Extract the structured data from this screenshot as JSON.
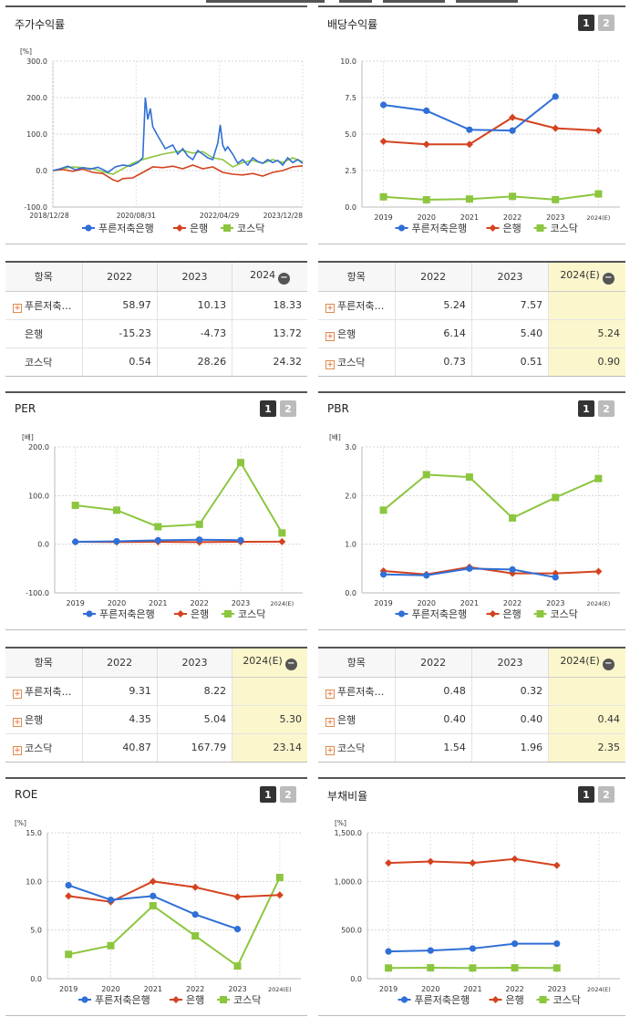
{
  "colors": {
    "bank": "#2f6fd6",
    "industry": "#d4431f",
    "kosdaq": "#8cc63f"
  },
  "legend": [
    "푸른저축은행",
    "은행",
    "코스닥"
  ],
  "btn1": "1",
  "btn2": "2",
  "panels": [
    {
      "key": "stock",
      "title": "주가수익률",
      "has_buttons": false
    },
    {
      "key": "div",
      "title": "배당수익률",
      "has_buttons": true
    },
    {
      "key": "per",
      "title": "PER",
      "has_buttons": true
    },
    {
      "key": "pbr",
      "title": "PBR",
      "has_buttons": true
    },
    {
      "key": "roe",
      "title": "ROE",
      "has_buttons": true
    },
    {
      "key": "debt",
      "title": "부채비율",
      "has_buttons": true
    }
  ],
  "chart_data": [
    {
      "id": "stock",
      "type": "line",
      "unit": "[%]",
      "yticks": [
        "300.0",
        "200.0",
        "100.0",
        "0.0",
        "-100.0"
      ],
      "ylim": [
        -100,
        300
      ],
      "xticks": [
        "2018/12/28",
        "2020/08/31",
        "2022/04/29",
        "2023/12/28"
      ],
      "series": [
        {
          "name": "푸른저축은행",
          "color": "#2f6fd6",
          "t": [
            0,
            3,
            6,
            9,
            12,
            15,
            18,
            20,
            22,
            25,
            28,
            31,
            34,
            36,
            37,
            38,
            39,
            40,
            42,
            45,
            48,
            50,
            52,
            54,
            56,
            58,
            60,
            62,
            64,
            66,
            67,
            68,
            69,
            70,
            72,
            74,
            76,
            78,
            80,
            82,
            84,
            86,
            88,
            90,
            92,
            94,
            96,
            98,
            100
          ],
          "v": [
            0,
            5,
            12,
            2,
            8,
            4,
            9,
            3,
            -5,
            10,
            15,
            12,
            22,
            35,
            200,
            140,
            170,
            120,
            95,
            60,
            70,
            45,
            60,
            40,
            30,
            55,
            45,
            35,
            30,
            75,
            125,
            70,
            55,
            65,
            45,
            20,
            30,
            15,
            35,
            25,
            20,
            30,
            22,
            28,
            15,
            35,
            22,
            30,
            20
          ]
        },
        {
          "name": "은행",
          "color": "#d4431f",
          "t": [
            0,
            4,
            8,
            12,
            16,
            20,
            24,
            26,
            28,
            32,
            36,
            40,
            44,
            48,
            52,
            56,
            60,
            64,
            68,
            72,
            76,
            80,
            84,
            88,
            92,
            96,
            100
          ],
          "v": [
            0,
            3,
            -2,
            4,
            -5,
            -8,
            -25,
            -30,
            -22,
            -20,
            -5,
            10,
            8,
            12,
            5,
            15,
            5,
            10,
            -5,
            -10,
            -12,
            -8,
            -15,
            -5,
            0,
            10,
            13
          ]
        },
        {
          "name": "코스닥",
          "color": "#8cc63f",
          "t": [
            0,
            4,
            8,
            12,
            16,
            20,
            24,
            28,
            32,
            36,
            40,
            44,
            48,
            52,
            56,
            60,
            64,
            68,
            72,
            76,
            80,
            84,
            88,
            92,
            96,
            100
          ],
          "v": [
            0,
            6,
            10,
            8,
            5,
            -3,
            -10,
            5,
            20,
            30,
            38,
            45,
            50,
            55,
            48,
            52,
            35,
            30,
            10,
            22,
            28,
            20,
            30,
            22,
            35,
            24
          ]
        }
      ]
    },
    {
      "id": "div",
      "type": "line",
      "unit": "",
      "yticks": [
        "10.0",
        "7.5",
        "5.0",
        "2.5",
        "0.0"
      ],
      "ylim": [
        0,
        10
      ],
      "categories": [
        "2019",
        "2020",
        "2021",
        "2022",
        "2023",
        "2024(E)"
      ],
      "series": [
        {
          "name": "푸른저축은행",
          "color": "#2f6fd6",
          "marker": "circle",
          "values": [
            7.0,
            6.6,
            5.3,
            5.24,
            7.57,
            null
          ]
        },
        {
          "name": "은행",
          "color": "#d4431f",
          "marker": "diamond",
          "values": [
            4.5,
            4.3,
            4.3,
            6.14,
            5.4,
            5.24
          ]
        },
        {
          "name": "코스닥",
          "color": "#8cc63f",
          "marker": "square",
          "values": [
            0.7,
            0.5,
            0.55,
            0.73,
            0.51,
            0.9
          ]
        }
      ]
    },
    {
      "id": "per",
      "type": "line",
      "unit": "[배]",
      "yticks": [
        "200.0",
        "100.0",
        "0.0",
        "-100.0"
      ],
      "ylim": [
        -100,
        200
      ],
      "categories": [
        "2019",
        "2020",
        "2021",
        "2022",
        "2023",
        "2024(E)"
      ],
      "series": [
        {
          "name": "푸른저축은행",
          "color": "#2f6fd6",
          "marker": "circle",
          "values": [
            5,
            6,
            8,
            9.31,
            8.22,
            null
          ]
        },
        {
          "name": "은행",
          "color": "#d4431f",
          "marker": "diamond",
          "values": [
            5,
            4.5,
            5,
            4.35,
            5.04,
            5.3
          ]
        },
        {
          "name": "코스닥",
          "color": "#8cc63f",
          "marker": "square",
          "values": [
            80,
            70,
            36,
            40.87,
            167.79,
            23.14
          ]
        }
      ]
    },
    {
      "id": "pbr",
      "type": "line",
      "unit": "[배]",
      "yticks": [
        "3.0",
        "2.0",
        "1.0",
        "0.0"
      ],
      "ylim": [
        0,
        3
      ],
      "categories": [
        "2019",
        "2020",
        "2021",
        "2022",
        "2023",
        "2024(E)"
      ],
      "series": [
        {
          "name": "푸른저축은행",
          "color": "#2f6fd6",
          "marker": "circle",
          "values": [
            0.38,
            0.36,
            0.5,
            0.48,
            0.32,
            null
          ]
        },
        {
          "name": "은행",
          "color": "#d4431f",
          "marker": "diamond",
          "values": [
            0.45,
            0.38,
            0.53,
            0.4,
            0.4,
            0.44
          ]
        },
        {
          "name": "코스닥",
          "color": "#8cc63f",
          "marker": "square",
          "values": [
            1.7,
            2.43,
            2.38,
            1.54,
            1.96,
            2.35
          ]
        }
      ]
    },
    {
      "id": "roe",
      "type": "line",
      "unit": "[%]",
      "yticks": [
        "15.0",
        "10.0",
        "5.0",
        "0.0"
      ],
      "ylim": [
        0,
        15
      ],
      "categories": [
        "2019",
        "2020",
        "2021",
        "2022",
        "2023",
        "2024(E)"
      ],
      "series": [
        {
          "name": "푸른저축은행",
          "color": "#2f6fd6",
          "marker": "circle",
          "values": [
            9.6,
            8.1,
            8.5,
            6.6,
            5.1,
            null
          ]
        },
        {
          "name": "은행",
          "color": "#d4431f",
          "marker": "diamond",
          "values": [
            8.5,
            7.9,
            10.0,
            9.4,
            8.4,
            8.6
          ]
        },
        {
          "name": "코스닥",
          "color": "#8cc63f",
          "marker": "square",
          "values": [
            2.5,
            3.4,
            7.5,
            4.4,
            1.3,
            10.4
          ]
        }
      ]
    },
    {
      "id": "debt",
      "type": "line",
      "unit": "[%]",
      "yticks": [
        "1,500.0",
        "1,000.0",
        "500.0",
        "0.0"
      ],
      "ylim": [
        0,
        1500
      ],
      "categories": [
        "2019",
        "2020",
        "2021",
        "2022",
        "2023",
        "2024(E)"
      ],
      "series": [
        {
          "name": "푸른저축은행",
          "color": "#2f6fd6",
          "marker": "circle",
          "values": [
            280,
            290,
            310,
            360,
            360,
            null
          ]
        },
        {
          "name": "은행",
          "color": "#d4431f",
          "marker": "diamond",
          "values": [
            1190,
            1205,
            1190,
            1230,
            1165,
            null
          ]
        },
        {
          "name": "코스닥",
          "color": "#8cc63f",
          "marker": "square",
          "values": [
            110,
            112,
            110,
            112,
            110,
            null
          ]
        }
      ]
    }
  ],
  "tables": [
    {
      "key": "stock_table",
      "header": {
        "item": "항목",
        "c1": "2022",
        "c2": "2023",
        "c3": "2024"
      },
      "rows": [
        {
          "plus": true,
          "label": "푸른저축…",
          "c1": "58.97",
          "c2": "10.13",
          "c3": "18.33",
          "hl": false
        },
        {
          "plus": false,
          "label": "은행",
          "c1": "-15.23",
          "c2": "-4.73",
          "c3": "13.72",
          "hl": false
        },
        {
          "plus": false,
          "label": "코스닥",
          "c1": "0.54",
          "c2": "28.26",
          "c3": "24.32",
          "hl": false
        }
      ]
    },
    {
      "key": "div_table",
      "header": {
        "item": "항목",
        "c1": "2022",
        "c2": "2023",
        "c3": "2024(E)"
      },
      "rows": [
        {
          "plus": true,
          "label": "푸른저축…",
          "c1": "5.24",
          "c2": "7.57",
          "c3": "",
          "hl": true
        },
        {
          "plus": true,
          "label": "은행",
          "c1": "6.14",
          "c2": "5.40",
          "c3": "5.24",
          "hl": true
        },
        {
          "plus": true,
          "label": "코스닥",
          "c1": "0.73",
          "c2": "0.51",
          "c3": "0.90",
          "hl": true
        }
      ]
    },
    {
      "key": "per_table",
      "header": {
        "item": "항목",
        "c1": "2022",
        "c2": "2023",
        "c3": "2024(E)"
      },
      "rows": [
        {
          "plus": true,
          "label": "푸른저축…",
          "c1": "9.31",
          "c2": "8.22",
          "c3": "",
          "hl": true
        },
        {
          "plus": true,
          "label": "은행",
          "c1": "4.35",
          "c2": "5.04",
          "c3": "5.30",
          "hl": true
        },
        {
          "plus": true,
          "label": "코스닥",
          "c1": "40.87",
          "c2": "167.79",
          "c3": "23.14",
          "hl": true
        }
      ]
    },
    {
      "key": "pbr_table",
      "header": {
        "item": "항목",
        "c1": "2022",
        "c2": "2023",
        "c3": "2024(E)"
      },
      "rows": [
        {
          "plus": true,
          "label": "푸른저축…",
          "c1": "0.48",
          "c2": "0.32",
          "c3": "",
          "hl": true
        },
        {
          "plus": true,
          "label": "은행",
          "c1": "0.40",
          "c2": "0.40",
          "c3": "0.44",
          "hl": true
        },
        {
          "plus": true,
          "label": "코스닥",
          "c1": "1.54",
          "c2": "1.96",
          "c3": "2.35",
          "hl": true
        }
      ]
    }
  ]
}
